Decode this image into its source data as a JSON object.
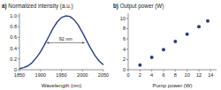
{
  "chart_data": [
    {
      "type": "line",
      "panel_label": "a)",
      "title": "Normalized intensity (a.u.)",
      "x_label": "Wavelength (nm)",
      "x": [
        1850,
        1860,
        1870,
        1880,
        1890,
        1900,
        1910,
        1920,
        1930,
        1940,
        1950,
        1960,
        1970,
        1980,
        1990,
        2000,
        2010,
        2020,
        2030,
        2040,
        2050
      ],
      "values": [
        0.02,
        0.04,
        0.07,
        0.13,
        0.22,
        0.33,
        0.47,
        0.62,
        0.77,
        0.89,
        0.97,
        1.0,
        0.99,
        0.93,
        0.83,
        0.69,
        0.54,
        0.39,
        0.26,
        0.16,
        0.09
      ],
      "color": "#2b3f7e",
      "xlim": [
        1850,
        2050
      ],
      "xticks": [
        1850,
        1900,
        1950,
        2000,
        2050
      ],
      "ylim": [
        0,
        1.05
      ],
      "yticks": [
        0,
        0.2,
        0.4,
        0.6,
        0.8,
        {
          "value": 1,
          "label": "1.0"
        }
      ],
      "annotations": [
        {
          "text": "92 nm",
          "x1": 1914,
          "x2": 2006,
          "y": 0.5
        }
      ],
      "grid": false
    },
    {
      "type": "scatter",
      "panel_label": "b)",
      "title": "Output power (W)",
      "x_label": "Pump power (W)",
      "x": [
        2,
        4,
        6,
        8,
        10,
        12,
        13.5
      ],
      "values": [
        0.9,
        2.4,
        3.9,
        5.5,
        6.9,
        8.4,
        9.5
      ],
      "color": "#2b3f7e",
      "marker": "circle",
      "xlim": [
        0,
        15
      ],
      "xticks": [
        0,
        2,
        4,
        6,
        8,
        10,
        12,
        14
      ],
      "ylim": [
        0,
        11
      ],
      "yticks": [
        0,
        2,
        4,
        6,
        8,
        10
      ],
      "grid": false
    }
  ]
}
